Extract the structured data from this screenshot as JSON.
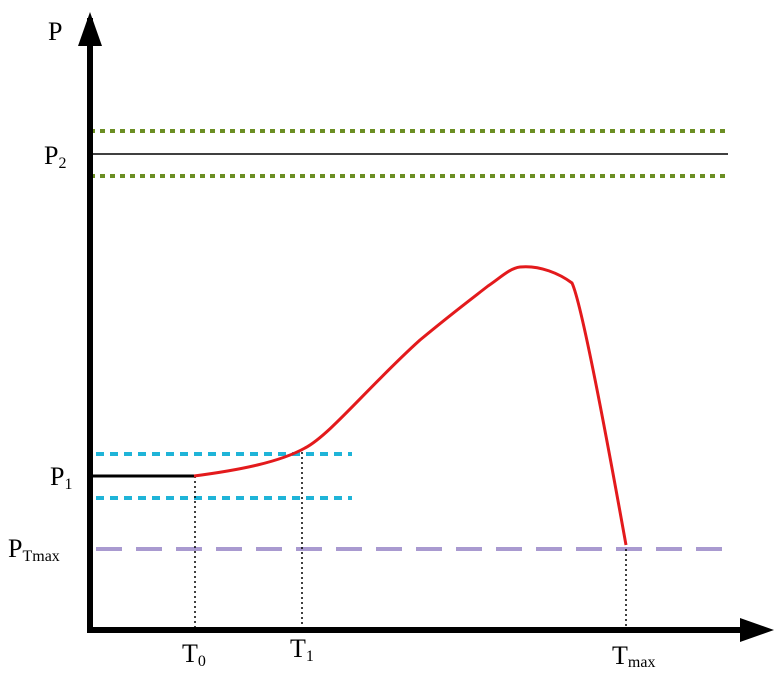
{
  "diagram": {
    "axis_y_label": "P",
    "axis_x_label": "",
    "levels": {
      "p2": {
        "main": "P",
        "sub": "2"
      },
      "p1": {
        "main": "P",
        "sub": "1"
      },
      "ptmax": {
        "main": "P",
        "sub": "Tmax"
      }
    },
    "times": {
      "t0": {
        "main": "T",
        "sub": "0"
      },
      "t1": {
        "main": "T",
        "sub": "1"
      },
      "tmax": {
        "main": "T",
        "sub": "max"
      }
    },
    "colors": {
      "axis": "#000000",
      "curve": "#e31a1c",
      "p2_band": "#6b8e23",
      "p1_band": "#1fb4d8",
      "ptmax_line": "#a99ad0"
    }
  }
}
